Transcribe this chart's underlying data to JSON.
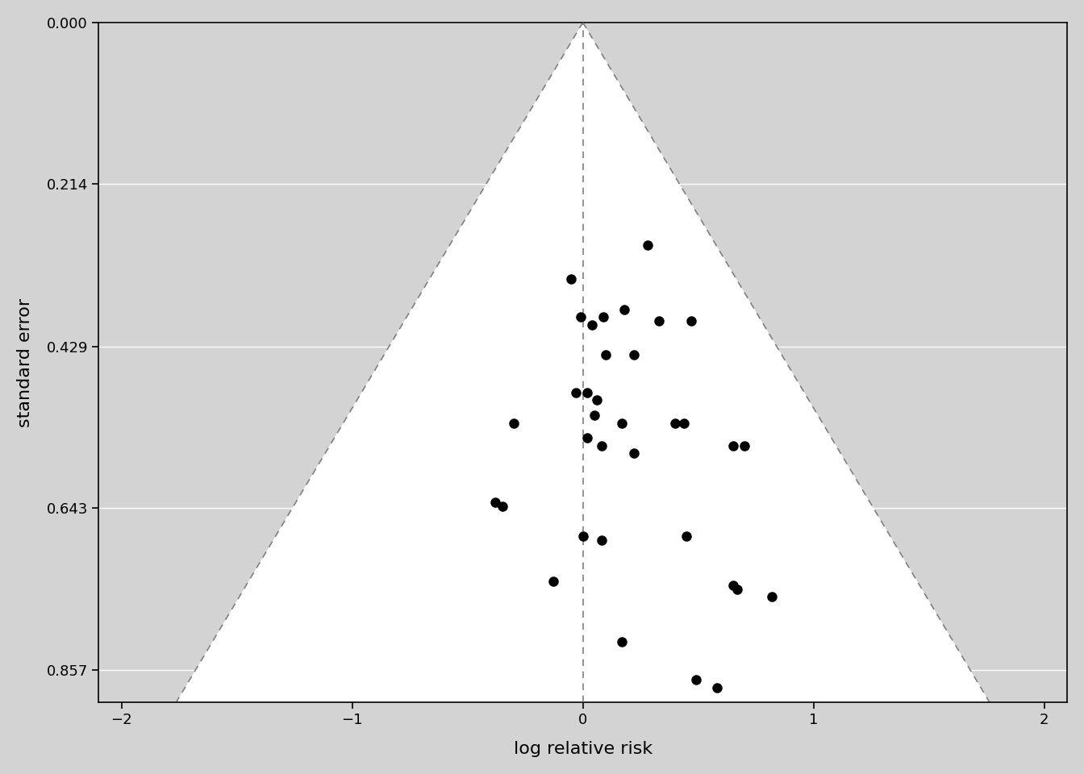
{
  "points": [
    [
      -0.05,
      0.34
    ],
    [
      0.28,
      0.295
    ],
    [
      0.18,
      0.38
    ],
    [
      0.04,
      0.4
    ],
    [
      -0.01,
      0.39
    ],
    [
      0.09,
      0.39
    ],
    [
      0.33,
      0.395
    ],
    [
      0.47,
      0.395
    ],
    [
      0.1,
      0.44
    ],
    [
      0.22,
      0.44
    ],
    [
      -0.03,
      0.49
    ],
    [
      0.02,
      0.49
    ],
    [
      0.06,
      0.5
    ],
    [
      0.05,
      0.52
    ],
    [
      0.17,
      0.53
    ],
    [
      0.4,
      0.53
    ],
    [
      0.44,
      0.53
    ],
    [
      -0.3,
      0.53
    ],
    [
      0.02,
      0.55
    ],
    [
      0.08,
      0.56
    ],
    [
      0.22,
      0.57
    ],
    [
      0.65,
      0.56
    ],
    [
      0.7,
      0.56
    ],
    [
      -0.38,
      0.635
    ],
    [
      -0.35,
      0.64
    ],
    [
      0.0,
      0.68
    ],
    [
      0.08,
      0.685
    ],
    [
      0.45,
      0.68
    ],
    [
      -0.13,
      0.74
    ],
    [
      0.65,
      0.745
    ],
    [
      0.67,
      0.75
    ],
    [
      0.82,
      0.76
    ],
    [
      0.17,
      0.82
    ],
    [
      0.49,
      0.87
    ],
    [
      0.58,
      0.88
    ]
  ],
  "xlim": [
    -2.1,
    2.1
  ],
  "ylim": [
    0.0,
    0.9
  ],
  "yticks": [
    0.0,
    0.214,
    0.429,
    0.643,
    0.857
  ],
  "xticks": [
    -2,
    -1,
    0,
    1,
    2
  ],
  "xlabel": "log relative risk",
  "ylabel": "standard error",
  "bg_color": "#d3d3d3",
  "funnel_color": "#ffffff",
  "point_color": "#000000",
  "point_size": 8,
  "dashed_line_color": "#808080",
  "grid_color": "#ffffff",
  "axis_bg": "#d3d3d3"
}
